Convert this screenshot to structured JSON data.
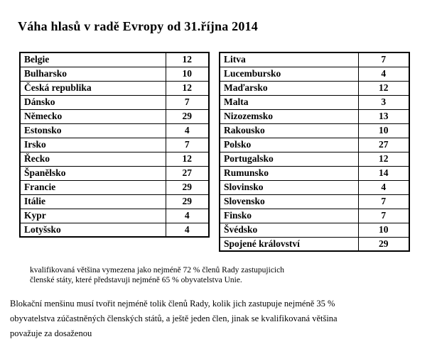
{
  "title": "Váha hlasů v radě Evropy od 31.října 2014",
  "left_table": {
    "rows": [
      {
        "country": "Belgie",
        "votes": "12"
      },
      {
        "country": "Bulharsko",
        "votes": "10"
      },
      {
        "country": "Česká republika",
        "votes": "12"
      },
      {
        "country": "Dánsko",
        "votes": "7"
      },
      {
        "country": "Německo",
        "votes": "29"
      },
      {
        "country": "Estonsko",
        "votes": "4"
      },
      {
        "country": "Irsko",
        "votes": "7"
      },
      {
        "country": "Řecko",
        "votes": "12"
      },
      {
        "country": "Španělsko",
        "votes": "27"
      },
      {
        "country": "Francie",
        "votes": "29"
      },
      {
        "country": "Itálie",
        "votes": "29"
      },
      {
        "country": "Kypr",
        "votes": "4"
      },
      {
        "country": "Lotyšsko",
        "votes": "4"
      }
    ]
  },
  "right_table": {
    "rows": [
      {
        "country": "Litva",
        "votes": "7"
      },
      {
        "country": "Lucembursko",
        "votes": "4"
      },
      {
        "country": "Maďarsko",
        "votes": "12"
      },
      {
        "country": "Malta",
        "votes": "3"
      },
      {
        "country": "Nizozemsko",
        "votes": "13"
      },
      {
        "country": "Rakousko",
        "votes": "10"
      },
      {
        "country": "Polsko",
        "votes": "27"
      },
      {
        "country": "Portugalsko",
        "votes": "12"
      },
      {
        "country": "Rumunsko",
        "votes": "14"
      },
      {
        "country": "Slovinsko",
        "votes": "4"
      },
      {
        "country": "Slovensko",
        "votes": "7"
      },
      {
        "country": "Finsko",
        "votes": "7"
      },
      {
        "country": "Švédsko",
        "votes": "10"
      },
      {
        "country": "Spojené království",
        "votes": "29"
      }
    ]
  },
  "notes": {
    "note1_lines": [
      "kvalifikovaná většina vymezena jako nejméně 72 % členů Rady zastupujicich",
      "členské státy, které představuji nejméně 65 % obyvatelstva Unie."
    ],
    "note2_lines": [
      "Blokační menšinu musí tvořit nejméně tolik členů Rady, kolik jich zastupuje nejméně 35 %",
      "obyvatelstva zúčastněných členských států, a ještě jeden člen, jinak se kvalifikovaná většina",
      "považuje za dosaženou"
    ]
  },
  "chart_data": {
    "type": "table",
    "title": "Váha hlasů v radě Evropy od 31.října 2014",
    "columns": [
      "country",
      "votes"
    ],
    "rows": [
      [
        "Belgie",
        12
      ],
      [
        "Bulharsko",
        10
      ],
      [
        "Česká republika",
        12
      ],
      [
        "Dánsko",
        7
      ],
      [
        "Německo",
        29
      ],
      [
        "Estonsko",
        4
      ],
      [
        "Irsko",
        7
      ],
      [
        "Řecko",
        12
      ],
      [
        "Španělsko",
        27
      ],
      [
        "Francie",
        29
      ],
      [
        "Itálie",
        29
      ],
      [
        "Kypr",
        4
      ],
      [
        "Lotyšsko",
        4
      ],
      [
        "Litva",
        7
      ],
      [
        "Lucembursko",
        4
      ],
      [
        "Maďarsko",
        12
      ],
      [
        "Malta",
        3
      ],
      [
        "Nizozemsko",
        13
      ],
      [
        "Rakousko",
        10
      ],
      [
        "Polsko",
        27
      ],
      [
        "Portugalsko",
        12
      ],
      [
        "Rumunsko",
        14
      ],
      [
        "Slovinsko",
        4
      ],
      [
        "Slovensko",
        7
      ],
      [
        "Finsko",
        7
      ],
      [
        "Švédsko",
        10
      ],
      [
        "Spojené království",
        29
      ]
    ]
  }
}
